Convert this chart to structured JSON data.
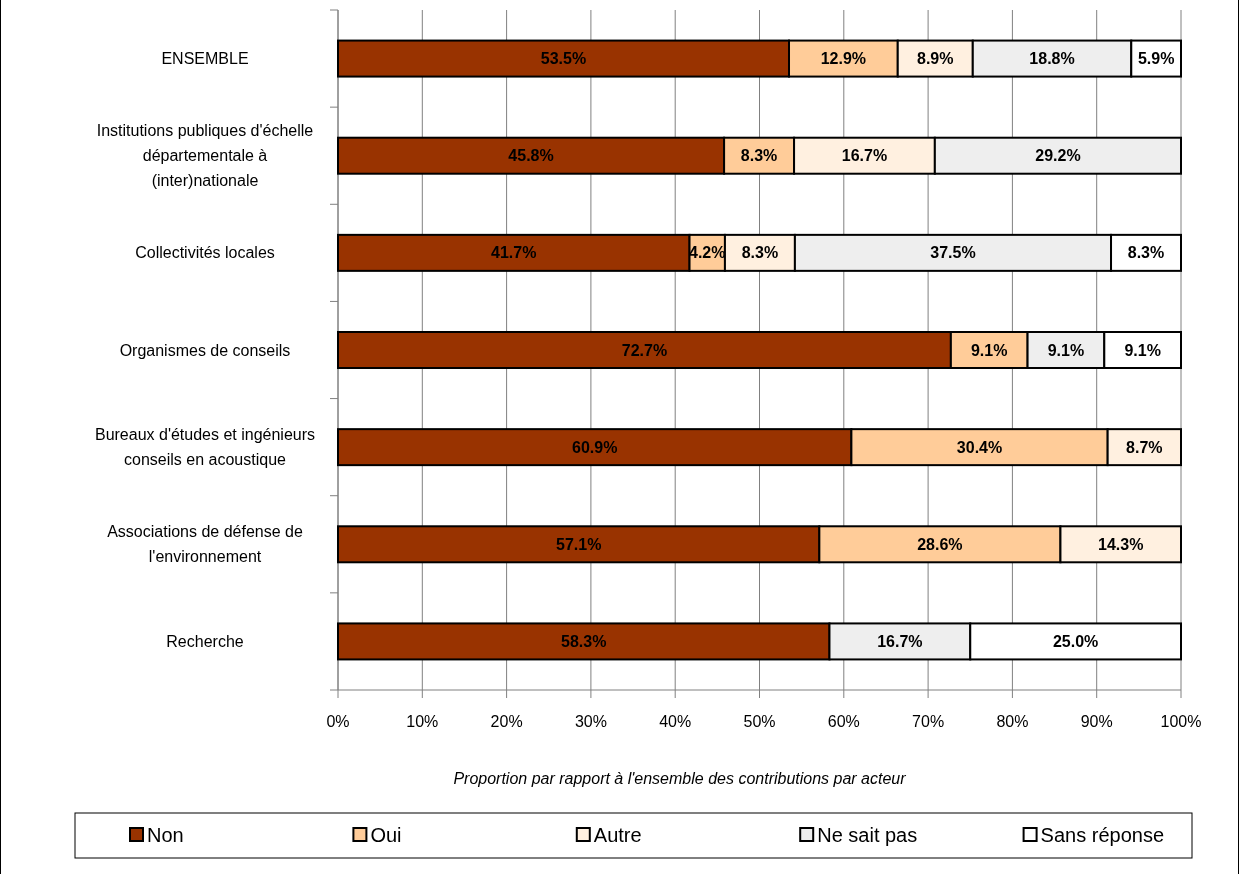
{
  "chart_data": {
    "type": "bar",
    "orientation": "horizontal",
    "stacked": true,
    "xlabel": "Proportion par rapport à l'ensemble des contributions par acteur",
    "categories": [
      "ENSEMBLE",
      "Institutions publiques d'échelle départementale à (inter)nationale",
      "Collectivités locales",
      "Organismes de conseils",
      "Bureaux d'études et ingénieurs conseils en acoustique",
      "Associations de défense de l'environnement",
      "Recherche"
    ],
    "series": [
      {
        "name": "Non",
        "color": "#993300",
        "values": [
          53.5,
          45.8,
          41.7,
          72.7,
          60.9,
          57.1,
          58.3
        ],
        "value_labels": [
          "53.5%",
          "45.8%",
          "41.7%",
          "72.7%",
          "60.9%",
          "57.1%",
          "58.3%"
        ]
      },
      {
        "name": "Oui",
        "color": "#ffcc99",
        "values": [
          12.9,
          8.3,
          4.2,
          9.1,
          30.4,
          28.6,
          null
        ],
        "value_labels": [
          "12.9%",
          "8.3%",
          "4.2%",
          "9.1%",
          "30.4%",
          "28.6%",
          null
        ]
      },
      {
        "name": "Autre",
        "color": "#fff0e0",
        "values": [
          8.9,
          16.7,
          8.3,
          null,
          8.7,
          14.3,
          null
        ],
        "value_labels": [
          "8.9%",
          "16.7%",
          "8.3%",
          null,
          "8.7%",
          "14.3%",
          null
        ]
      },
      {
        "name": "Ne sait pas",
        "color": "#eeeeee",
        "values": [
          18.8,
          29.2,
          37.5,
          9.1,
          null,
          null,
          16.7
        ],
        "value_labels": [
          "18.8%",
          "29.2%",
          "37.5%",
          "9.1%",
          null,
          null,
          "16.7%"
        ]
      },
      {
        "name": "Sans réponse",
        "color": "#ffffff",
        "values": [
          5.9,
          null,
          8.3,
          9.1,
          null,
          null,
          25.0
        ],
        "value_labels": [
          "5.9%",
          null,
          "8.3%",
          "9.1%",
          null,
          null,
          "25.0%"
        ]
      }
    ],
    "xlim": [
      0,
      100
    ],
    "xticks": [
      {
        "value": 0,
        "label": "0%"
      },
      {
        "value": 10,
        "label": "10%"
      },
      {
        "value": 20,
        "label": "20%"
      },
      {
        "value": 30,
        "label": "30%"
      },
      {
        "value": 40,
        "label": "40%"
      },
      {
        "value": 50,
        "label": "50%"
      },
      {
        "value": 60,
        "label": "60%"
      },
      {
        "value": 70,
        "label": "70%"
      },
      {
        "value": 80,
        "label": "80%"
      },
      {
        "value": 90,
        "label": "90%"
      },
      {
        "value": 100,
        "label": "100%"
      }
    ],
    "grid": "x",
    "legend": "bottom"
  }
}
